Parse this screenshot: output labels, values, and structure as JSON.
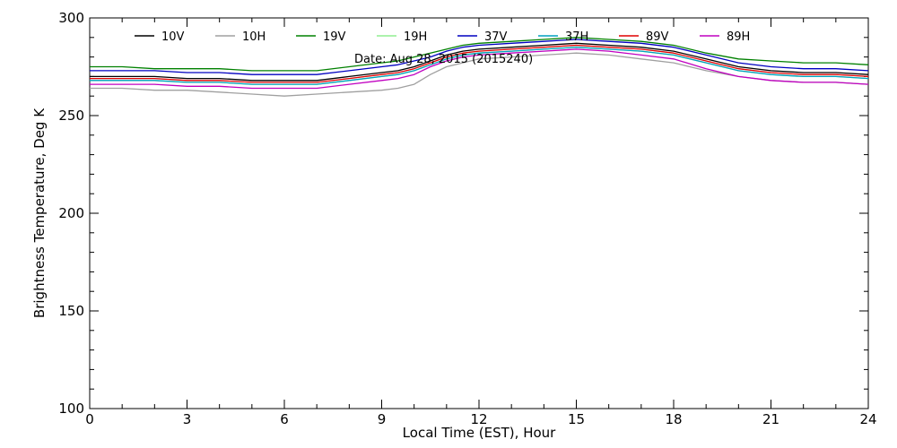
{
  "chart_data": {
    "type": "line",
    "title": "",
    "annotation": "Date: Aug 28, 2015 (2015240)",
    "xlabel": "Local Time (EST), Hour",
    "ylabel": "Brightness Temperature, Deg K",
    "xlim": [
      0,
      24
    ],
    "ylim": [
      100,
      300
    ],
    "xticks": [
      0,
      3,
      6,
      9,
      12,
      15,
      18,
      21,
      24
    ],
    "yticks": [
      100,
      150,
      200,
      250,
      300
    ],
    "x": [
      0,
      1,
      2,
      3,
      4,
      5,
      6,
      7,
      8,
      9,
      9.5,
      10,
      10.5,
      11,
      11.5,
      12,
      13,
      14,
      15,
      16,
      17,
      18,
      19,
      20,
      21,
      22,
      23,
      24
    ],
    "legend_position": "top",
    "series": [
      {
        "name": "10V",
        "color": "#000000",
        "values": [
          270,
          270,
          270,
          269,
          269,
          268,
          268,
          268,
          270,
          272,
          273,
          275,
          278,
          281,
          283,
          284,
          285,
          286,
          287,
          286,
          285,
          283,
          279,
          275,
          273,
          272,
          272,
          271
        ]
      },
      {
        "name": "10H",
        "color": "#a0a0a0",
        "values": [
          264,
          264,
          263,
          263,
          262,
          261,
          260,
          261,
          262,
          263,
          264,
          266,
          271,
          275,
          277,
          279,
          280,
          281,
          282,
          281,
          279,
          277,
          273,
          270,
          268,
          267,
          267,
          266
        ]
      },
      {
        "name": "19V",
        "color": "#008000",
        "values": [
          275,
          275,
          274,
          274,
          274,
          273,
          273,
          273,
          275,
          277,
          278,
          280,
          282,
          284,
          286,
          287,
          288,
          289,
          290,
          289,
          288,
          286,
          282,
          279,
          278,
          277,
          277,
          276
        ]
      },
      {
        "name": "19H",
        "color": "#90ee90",
        "values": [
          268,
          268,
          268,
          267,
          267,
          266,
          266,
          266,
          268,
          270,
          271,
          273,
          276,
          279,
          281,
          282,
          283,
          284,
          285,
          284,
          283,
          281,
          277,
          273,
          271,
          270,
          270,
          269
        ]
      },
      {
        "name": "37V",
        "color": "#0000c0",
        "values": [
          273,
          273,
          273,
          272,
          272,
          271,
          271,
          271,
          273,
          275,
          276,
          278,
          280,
          283,
          285,
          286,
          287,
          288,
          289,
          288,
          287,
          285,
          281,
          277,
          275,
          274,
          274,
          273
        ]
      },
      {
        "name": "37H",
        "color": "#00a0c0",
        "values": [
          268,
          268,
          268,
          267,
          267,
          266,
          266,
          266,
          268,
          270,
          271,
          273,
          276,
          279,
          281,
          282,
          283,
          284,
          285,
          284,
          283,
          281,
          277,
          273,
          271,
          270,
          270,
          269
        ]
      },
      {
        "name": "89V",
        "color": "#e00000",
        "values": [
          269,
          269,
          269,
          268,
          268,
          267,
          267,
          267,
          269,
          271,
          272,
          274,
          277,
          280,
          282,
          283,
          284,
          285,
          286,
          285,
          284,
          282,
          278,
          274,
          272,
          271,
          271,
          270
        ]
      },
      {
        "name": "89H",
        "color": "#c000c0",
        "values": [
          266,
          266,
          266,
          265,
          265,
          264,
          264,
          264,
          266,
          268,
          269,
          271,
          275,
          278,
          280,
          281,
          282,
          283,
          284,
          283,
          281,
          279,
          274,
          270,
          268,
          267,
          267,
          266
        ]
      }
    ]
  }
}
